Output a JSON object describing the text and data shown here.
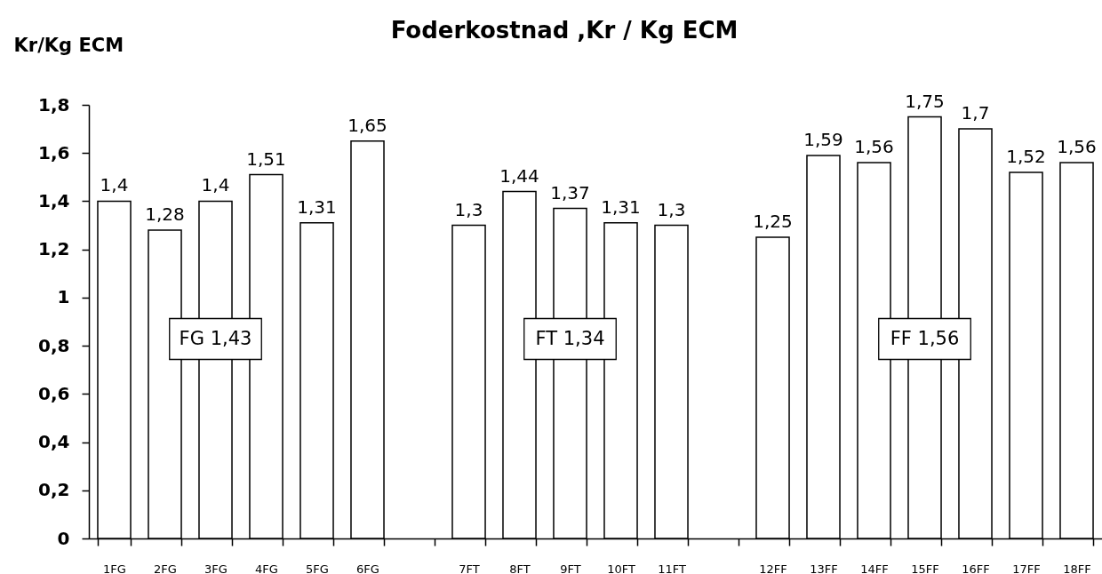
{
  "chart_data": {
    "type": "bar",
    "title": "Foderkostnad ,Kr / Kg ECM",
    "ylabel": "Kr/Kg ECM",
    "categories": [
      "1FG",
      "2FG",
      "3FG",
      "4FG",
      "5FG",
      "6FG",
      null,
      "7FT",
      "8FT",
      "9FT",
      "10FT",
      "11FT",
      null,
      "12FF",
      "13FF",
      "14FF",
      "15FF",
      "16FF",
      "17FF",
      "18FF"
    ],
    "values": [
      1.4,
      1.28,
      1.4,
      1.51,
      1.31,
      1.65,
      null,
      1.3,
      1.44,
      1.37,
      1.31,
      1.3,
      null,
      1.25,
      1.59,
      1.56,
      1.75,
      1.7,
      1.52,
      1.56
    ],
    "value_labels": [
      "1,4",
      "1,28",
      "1,4",
      "1,51",
      "1,31",
      "1,65",
      null,
      "1,3",
      "1,44",
      "1,37",
      "1,31",
      "1,3",
      null,
      "1,25",
      "1,59",
      "1,56",
      "1,75",
      "1,7",
      "1,52",
      "1,56"
    ],
    "color": "#ffffff",
    "ylim": [
      0,
      1.8
    ],
    "yticks": [
      0,
      {
        "value": 0.2,
        "label": "0,2"
      },
      {
        "value": 0.4,
        "label": "0,4"
      },
      {
        "value": 0.6,
        "label": "0,6"
      },
      {
        "value": 0.8,
        "label": "0,8"
      },
      1,
      {
        "value": 1.2,
        "label": "1,2"
      },
      {
        "value": 1.4,
        "label": "1,4"
      },
      {
        "value": 1.6,
        "label": "1,6"
      },
      {
        "value": 1.8,
        "label": "1,8"
      }
    ],
    "grid": false,
    "annotations": [
      "FG 1,43",
      "FT 1,34",
      "FF 1,56"
    ]
  }
}
